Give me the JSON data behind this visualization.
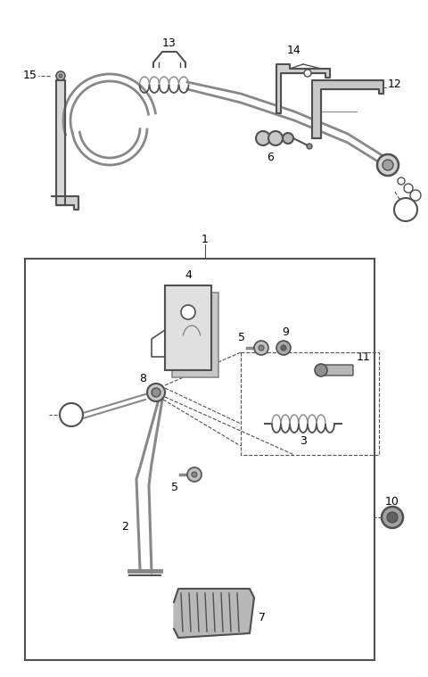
{
  "bg_color": "#ffffff",
  "line_color": "#505050",
  "label_color": "#000000",
  "fig_width": 4.8,
  "fig_height": 7.59,
  "dpi": 100
}
